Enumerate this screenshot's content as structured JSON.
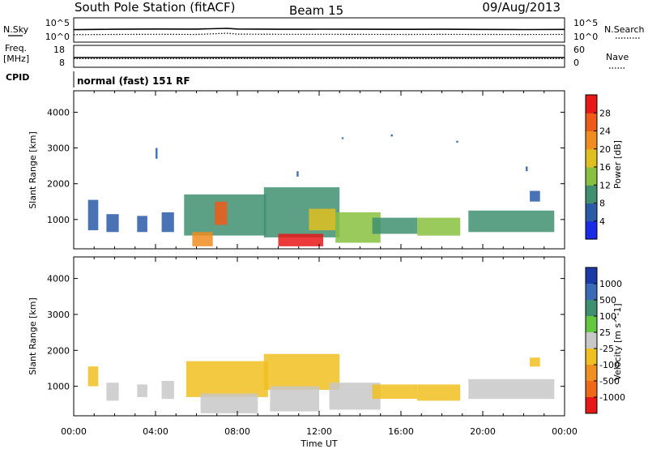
{
  "header": {
    "station": "South Pole Station (fitACF)",
    "beam": "Beam 15",
    "date": "09/Aug/2013"
  },
  "strip": {
    "nsky_label": "N.Sky",
    "nsearch_label": "N.Search",
    "noise_ticks": [
      "10^5",
      "10^0"
    ],
    "freq_label": "Freq.",
    "freq_unit": "[MHz]",
    "freq_ticks": [
      "18",
      "8"
    ],
    "nave_label": "Nave",
    "nave_ticks": [
      "60",
      "0"
    ],
    "cpid_label": "CPID",
    "cpid_value": "normal (fast) 151 RF"
  },
  "axes": {
    "xlabel": "Time UT",
    "ylabel_top": "Slant Range [km]",
    "ylabel_bottom": "Slant Range [km]",
    "x_ticks": [
      "00:00",
      "04:00",
      "08:00",
      "12:00",
      "16:00",
      "20:00",
      "00:00"
    ],
    "y_ticks": [
      "1000",
      "2000",
      "3000",
      "4000"
    ]
  },
  "colorbars": {
    "power": {
      "label": "Power [dB]",
      "ticks": [
        "4",
        "8",
        "12",
        "16",
        "20",
        "24",
        "28"
      ],
      "colors": [
        "#1a2be8",
        "#2a5aa8",
        "#3f8f70",
        "#88c040",
        "#e0c020",
        "#f08c20",
        "#ee5a18",
        "#e81818"
      ]
    },
    "velocity": {
      "label": "Velocity [m s^-1]",
      "ticks": [
        "1000",
        "500",
        "100",
        "25",
        "-25",
        "-100",
        "-500",
        "-1000"
      ],
      "colors": [
        "#1a3aa8",
        "#3a6ab8",
        "#3f9070",
        "#62c840",
        "#c8c8c8",
        "#f0c020",
        "#f09020",
        "#ee6a18",
        "#e81818"
      ]
    }
  },
  "chart_data": [
    {
      "type": "line",
      "title": "South Pole Station (fitACF) Beam 15",
      "xlabel": "",
      "ylabel": "N.Sky / N.Search",
      "xlim": [
        0,
        24
      ],
      "yscale": "log",
      "ylim": [
        1,
        100000
      ],
      "series": [
        {
          "name": "N.Sky",
          "x": [
            0,
            2,
            4,
            6,
            7.5,
            8,
            10,
            12,
            14,
            16,
            18,
            20,
            22,
            24
          ],
          "values": [
            400,
            500,
            600,
            550,
            900,
            600,
            500,
            520,
            500,
            480,
            500,
            450,
            420,
            450
          ]
        },
        {
          "name": "N.Search",
          "x": [
            0,
            2,
            4,
            6,
            7.5,
            8,
            10,
            12,
            14,
            16,
            18,
            20,
            22,
            24
          ],
          "values": [
            15,
            18,
            20,
            18,
            40,
            22,
            20,
            20,
            19,
            18,
            19,
            18,
            17,
            18
          ]
        }
      ]
    },
    {
      "type": "line",
      "xlabel": "",
      "ylabel": "Freq. [MHz] / Nave",
      "xlim": [
        0,
        24
      ],
      "ylim": [
        8,
        18
      ],
      "series": [
        {
          "name": "Freq.",
          "x": [
            0,
            6,
            12,
            18,
            24
          ],
          "values": [
            12.3,
            12.3,
            12.3,
            12.3,
            12.3
          ]
        },
        {
          "name": "Nave",
          "x": [
            0,
            6,
            12,
            18,
            24
          ],
          "values": [
            22,
            22,
            22,
            22,
            22
          ]
        }
      ]
    },
    {
      "type": "heatmap",
      "quantity": "Power [dB]",
      "xlabel": "Time UT",
      "ylabel": "Slant Range [km]",
      "xlim": [
        0,
        24
      ],
      "ylim": [
        180,
        4600
      ],
      "clim": [
        0,
        32
      ],
      "patches": [
        {
          "t0": 0.7,
          "t1": 1.2,
          "r0": 700,
          "r1": 1550,
          "value": 7
        },
        {
          "t0": 1.6,
          "t1": 2.2,
          "r0": 650,
          "r1": 1150,
          "value": 7
        },
        {
          "t0": 3.1,
          "t1": 3.6,
          "r0": 650,
          "r1": 1100,
          "value": 6
        },
        {
          "t0": 4.3,
          "t1": 4.9,
          "r0": 650,
          "r1": 1200,
          "value": 7
        },
        {
          "t0": 5.4,
          "t1": 9.4,
          "r0": 550,
          "r1": 1700,
          "value": 9
        },
        {
          "t0": 6.9,
          "t1": 7.5,
          "r0": 850,
          "r1": 1500,
          "value": 25
        },
        {
          "t0": 5.8,
          "t1": 6.8,
          "r0": 250,
          "r1": 650,
          "value": 22
        },
        {
          "t0": 9.3,
          "t1": 13.0,
          "r0": 500,
          "r1": 1900,
          "value": 9
        },
        {
          "t0": 10.0,
          "t1": 12.2,
          "r0": 250,
          "r1": 600,
          "value": 29
        },
        {
          "t0": 11.5,
          "t1": 12.8,
          "r0": 700,
          "r1": 1300,
          "value": 19
        },
        {
          "t0": 12.8,
          "t1": 15.0,
          "r0": 350,
          "r1": 1200,
          "value": 12
        },
        {
          "t0": 14.6,
          "t1": 16.8,
          "r0": 600,
          "r1": 1050,
          "value": 8
        },
        {
          "t0": 16.8,
          "t1": 18.9,
          "r0": 550,
          "r1": 1050,
          "value": 13
        },
        {
          "t0": 19.3,
          "t1": 23.5,
          "r0": 650,
          "r1": 1250,
          "value": 8
        },
        {
          "t0": 22.3,
          "t1": 22.8,
          "r0": 1500,
          "r1": 1800,
          "value": 7
        },
        {
          "t0": 4.0,
          "t1": 4.1,
          "r0": 2700,
          "r1": 3000,
          "value": 6
        },
        {
          "t0": 10.9,
          "t1": 11.0,
          "r0": 2200,
          "r1": 2350,
          "value": 6
        },
        {
          "t0": 13.1,
          "t1": 13.2,
          "r0": 3250,
          "r1": 3300,
          "value": 6
        },
        {
          "t0": 15.5,
          "t1": 15.6,
          "r0": 3320,
          "r1": 3380,
          "value": 6
        },
        {
          "t0": 18.7,
          "t1": 18.8,
          "r0": 3150,
          "r1": 3200,
          "value": 6
        },
        {
          "t0": 22.1,
          "t1": 22.2,
          "r0": 2350,
          "r1": 2480,
          "value": 6
        }
      ]
    },
    {
      "type": "heatmap",
      "quantity": "Velocity [m s^-1]",
      "xlabel": "Time UT",
      "ylabel": "Slant Range [km]",
      "xlim": [
        0,
        24
      ],
      "ylim": [
        180,
        4600
      ],
      "clim": [
        -1200,
        1200
      ],
      "patches": [
        {
          "t0": 0.7,
          "t1": 1.2,
          "r0": 1000,
          "r1": 1550,
          "value": -150
        },
        {
          "t0": 1.6,
          "t1": 2.2,
          "r0": 600,
          "r1": 1100,
          "value": 60
        },
        {
          "t0": 3.1,
          "t1": 3.6,
          "r0": 700,
          "r1": 1050,
          "value": -120
        },
        {
          "t0": 4.3,
          "t1": 4.9,
          "r0": 650,
          "r1": 1150,
          "value": 60
        },
        {
          "t0": 5.5,
          "t1": 9.5,
          "r0": 700,
          "r1": 1700,
          "value": -320
        },
        {
          "t0": 6.2,
          "t1": 9.0,
          "r0": 250,
          "r1": 800,
          "value": 90
        },
        {
          "t0": 9.3,
          "t1": 13.0,
          "r0": 900,
          "r1": 1900,
          "value": -360
        },
        {
          "t0": 9.6,
          "t1": 12.0,
          "r0": 300,
          "r1": 1000,
          "value": 90
        },
        {
          "t0": 12.5,
          "t1": 15.0,
          "r0": 350,
          "r1": 1100,
          "value": -30
        },
        {
          "t0": 14.6,
          "t1": 16.8,
          "r0": 650,
          "r1": 1050,
          "value": -140
        },
        {
          "t0": 16.8,
          "t1": 18.9,
          "r0": 600,
          "r1": 1050,
          "value": -200
        },
        {
          "t0": 19.3,
          "t1": 23.5,
          "r0": 650,
          "r1": 1200,
          "value": -110
        },
        {
          "t0": 22.3,
          "t1": 22.8,
          "r0": 1550,
          "r1": 1800,
          "value": -150
        }
      ]
    }
  ]
}
